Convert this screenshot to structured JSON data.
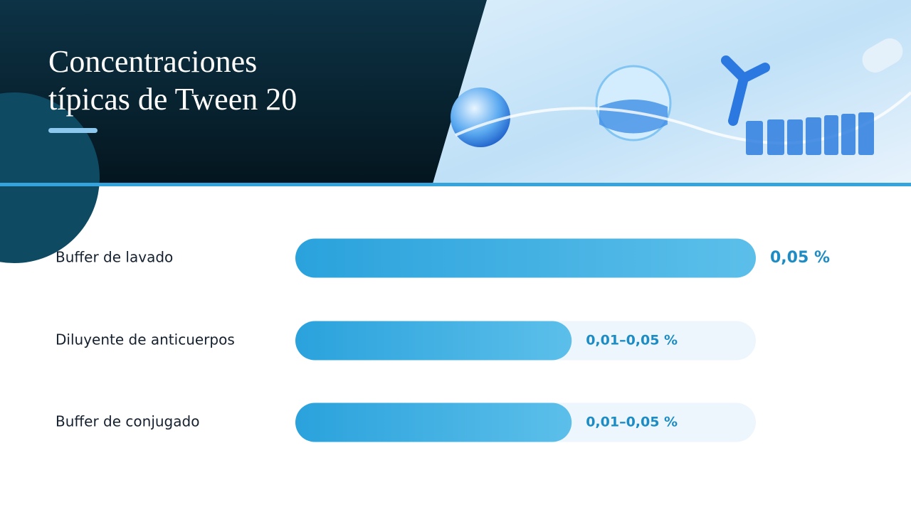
{
  "chart_data": {
    "type": "bar",
    "orientation": "horizontal",
    "title": "Concentraciones típicas de Tween 20",
    "categories": [
      "Buffer de lavado",
      "Diluyente de anticuerpos",
      "Buffer de conjugado"
    ],
    "values": [
      0.05,
      0.03,
      0.03
    ],
    "value_labels": [
      "0,05 %",
      "0,01–0,05 %",
      "0,01–0,05 %"
    ],
    "xlim": [
      0,
      0.05
    ],
    "color": "#2ea6de"
  }
}
